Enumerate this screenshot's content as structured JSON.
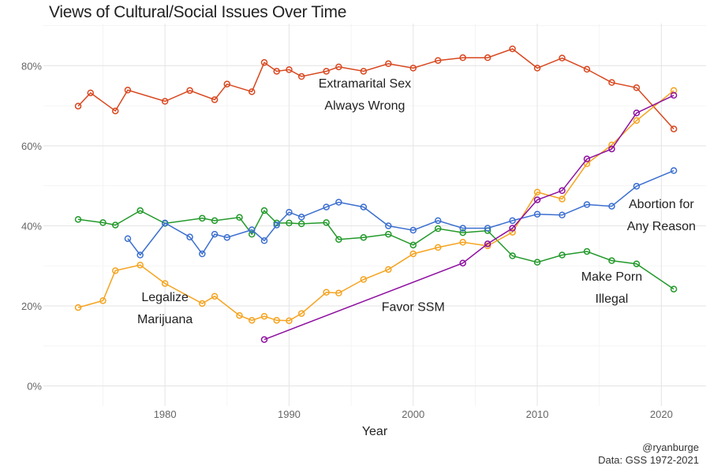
{
  "chart_data": {
    "type": "line",
    "title": "Views of Cultural/Social Issues Over Time",
    "xlabel": "Year",
    "ylabel": "",
    "xlim": [
      1970.2,
      2023.6
    ],
    "ylim": [
      -5,
      90.5
    ],
    "x_ticks": [
      1980,
      1990,
      2000,
      2010,
      2020
    ],
    "x_tick_labels": [
      "1980",
      "1990",
      "2000",
      "2010",
      "2020"
    ],
    "y_ticks": [
      0,
      20,
      40,
      60,
      80
    ],
    "y_tick_labels": [
      "0%",
      "20%",
      "40%",
      "60%",
      "80%"
    ],
    "grid": true,
    "legend": "none (direct labels)",
    "series": [
      {
        "name": "Extramarital Sex Always Wrong",
        "color": "#d9471f",
        "x": [
          1973,
          1974,
          1976,
          1977,
          1980,
          1982,
          1984,
          1985,
          1987,
          1988,
          1989,
          1990,
          1991,
          1993,
          1994,
          1996,
          1998,
          2000,
          2002,
          2004,
          2006,
          2008,
          2010,
          2012,
          2014,
          2016,
          2018,
          2021
        ],
        "y": [
          69.9,
          73.2,
          68.7,
          73.9,
          71.1,
          73.8,
          71.5,
          75.4,
          73.5,
          80.8,
          78.6,
          79.0,
          77.3,
          78.6,
          79.7,
          78.6,
          80.5,
          79.4,
          81.3,
          82.0,
          82.0,
          84.2,
          79.4,
          81.9,
          79.1,
          75.8,
          74.5,
          64.2
        ]
      },
      {
        "name": "Make Porn Illegal",
        "color": "#22992a",
        "x": [
          1973,
          1975,
          1976,
          1978,
          1980,
          1983,
          1984,
          1986,
          1987,
          1988,
          1989,
          1990,
          1991,
          1993,
          1994,
          1996,
          1998,
          2000,
          2002,
          2004,
          2006,
          2008,
          2010,
          2012,
          2014,
          2016,
          2018,
          2021
        ],
        "y": [
          41.6,
          40.8,
          40.2,
          43.8,
          40.6,
          41.9,
          41.3,
          42.1,
          37.9,
          43.8,
          40.7,
          40.7,
          40.5,
          40.8,
          36.6,
          37.1,
          37.9,
          35.2,
          39.3,
          38.3,
          38.8,
          32.5,
          30.9,
          32.7,
          33.6,
          31.3,
          30.5,
          24.2
        ]
      },
      {
        "name": "Abortion for Any Reason",
        "color": "#3b6fd0",
        "x": [
          1977,
          1978,
          1980,
          1982,
          1983,
          1984,
          1985,
          1987,
          1988,
          1989,
          1990,
          1991,
          1993,
          1994,
          1996,
          1998,
          2000,
          2002,
          2004,
          2006,
          2008,
          2010,
          2012,
          2014,
          2016,
          2018,
          2021
        ],
        "y": [
          36.8,
          32.7,
          40.7,
          37.2,
          33.0,
          37.9,
          37.1,
          39.0,
          36.3,
          40.2,
          43.4,
          42.2,
          44.7,
          45.9,
          44.7,
          40.0,
          38.9,
          41.3,
          39.4,
          39.4,
          41.3,
          42.9,
          42.7,
          45.3,
          44.9,
          49.9,
          53.8
        ]
      },
      {
        "name": "Legalize Marijuana",
        "color": "#f5a31f",
        "x": [
          1973,
          1975,
          1976,
          1978,
          1980,
          1983,
          1984,
          1986,
          1987,
          1988,
          1989,
          1990,
          1991,
          1993,
          1994,
          1996,
          1998,
          2000,
          2002,
          2004,
          2006,
          2008,
          2010,
          2012,
          2014,
          2016,
          2018,
          2021
        ],
        "y": [
          19.6,
          21.3,
          28.8,
          30.2,
          25.6,
          20.6,
          22.4,
          17.6,
          16.4,
          17.4,
          16.4,
          16.3,
          18.1,
          23.4,
          23.2,
          26.6,
          29.1,
          33.0,
          34.6,
          35.9,
          35.0,
          38.4,
          48.4,
          46.7,
          55.5,
          60.2,
          66.3,
          73.8
        ]
      },
      {
        "name": "Favor SSM",
        "color": "#8e0fa0",
        "x": [
          1988,
          2004,
          2006,
          2008,
          2010,
          2012,
          2014,
          2016,
          2018,
          2021
        ],
        "y": [
          11.6,
          30.7,
          35.5,
          39.4,
          46.5,
          48.8,
          56.7,
          59.2,
          68.2,
          72.6
        ]
      }
    ],
    "annotations": [
      {
        "lines": [
          "Extramarital Sex",
          "Always Wrong"
        ],
        "x": 1996.1,
        "y": [
          75.7,
          70.2
        ]
      },
      {
        "lines": [
          "Legalize",
          "Marijuana"
        ],
        "x": 1980.0,
        "y": [
          22.4,
          16.9
        ]
      },
      {
        "lines": [
          "Favor SSM"
        ],
        "x": 2000.0,
        "y": [
          19.9
        ]
      },
      {
        "lines": [
          "Make Porn",
          "Illegal"
        ],
        "x": 2016.0,
        "y": [
          27.5,
          22.0
        ]
      },
      {
        "lines": [
          "Abortion for",
          "Any Reason"
        ],
        "x": 2020.0,
        "y": [
          45.6,
          40.1
        ]
      }
    ]
  },
  "credit": {
    "handle": "@ryanburge",
    "source": "Data: GSS 1972-2021"
  }
}
